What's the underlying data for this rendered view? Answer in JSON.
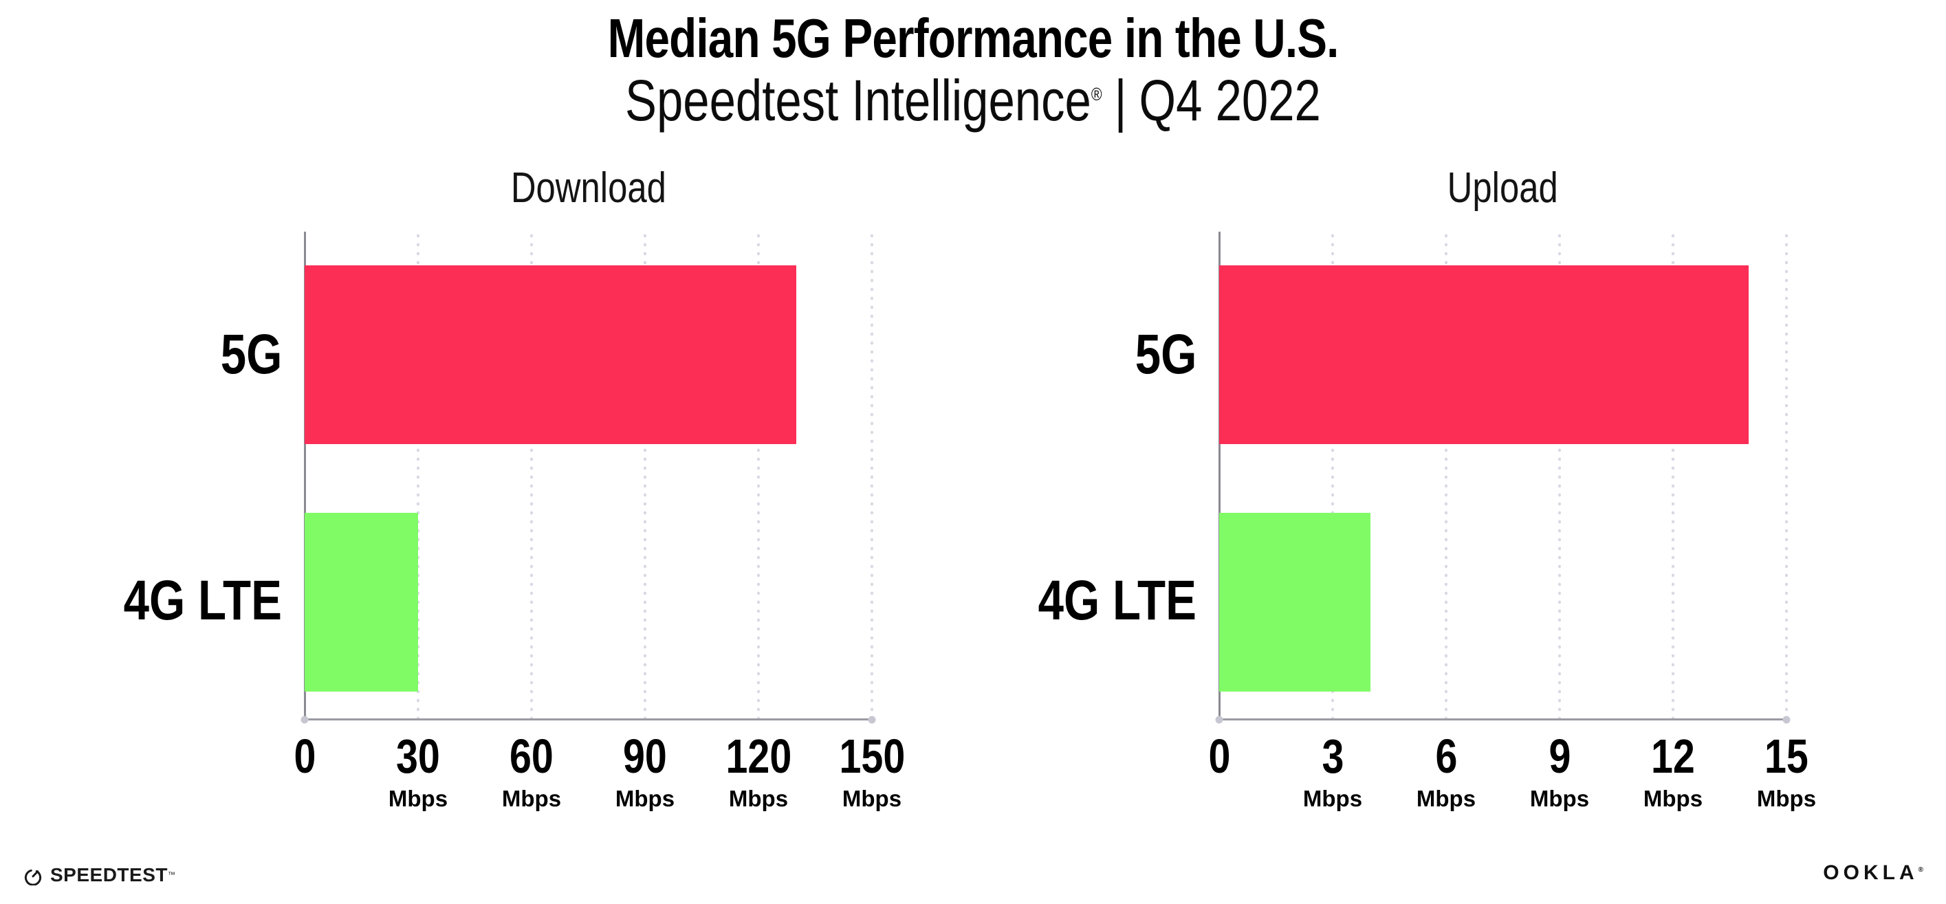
{
  "header": {
    "title": "Median 5G Performance in the U.S.",
    "subtitle": {
      "brand": "Speedtest Intelligence",
      "registered_mark": "®",
      "separator": "|",
      "period": "Q4 2022"
    }
  },
  "chart_data": [
    {
      "type": "bar",
      "orientation": "horizontal",
      "title": "Download",
      "categories": [
        "5G",
        "4G LTE"
      ],
      "values": [
        130,
        30
      ],
      "unit": "Mbps",
      "axis": {
        "min": 0,
        "max": 150,
        "ticks": [
          0,
          30,
          60,
          90,
          120,
          150
        ]
      },
      "bar_colors": [
        "#FC2E56",
        "#80FB66"
      ],
      "grid": "dotted vertical gridlines at each tick",
      "legend": "none",
      "value_labels_shown": false
    },
    {
      "type": "bar",
      "orientation": "horizontal",
      "title": "Upload",
      "categories": [
        "5G",
        "4G LTE"
      ],
      "values": [
        14,
        4
      ],
      "unit": "Mbps",
      "axis": {
        "min": 0,
        "max": 15,
        "ticks": [
          0,
          3,
          6,
          9,
          12,
          15
        ]
      },
      "bar_colors": [
        "#FC2E56",
        "#80FB66"
      ],
      "grid": "dotted vertical gridlines at each tick",
      "legend": "none",
      "value_labels_shown": false
    }
  ],
  "colors": {
    "bar_5g": "#FC2E56",
    "bar_4g_lte": "#80FB66",
    "axis_line": "#9b9ba3",
    "gridline_dots": "#d9d9e4",
    "text": "#000000",
    "background": "#ffffff"
  },
  "footer": {
    "speedtest_wordmark": "SPEEDTEST",
    "speedtest_trademark": "™",
    "ookla_wordmark": "OOKLA",
    "ookla_trademark": "®"
  }
}
